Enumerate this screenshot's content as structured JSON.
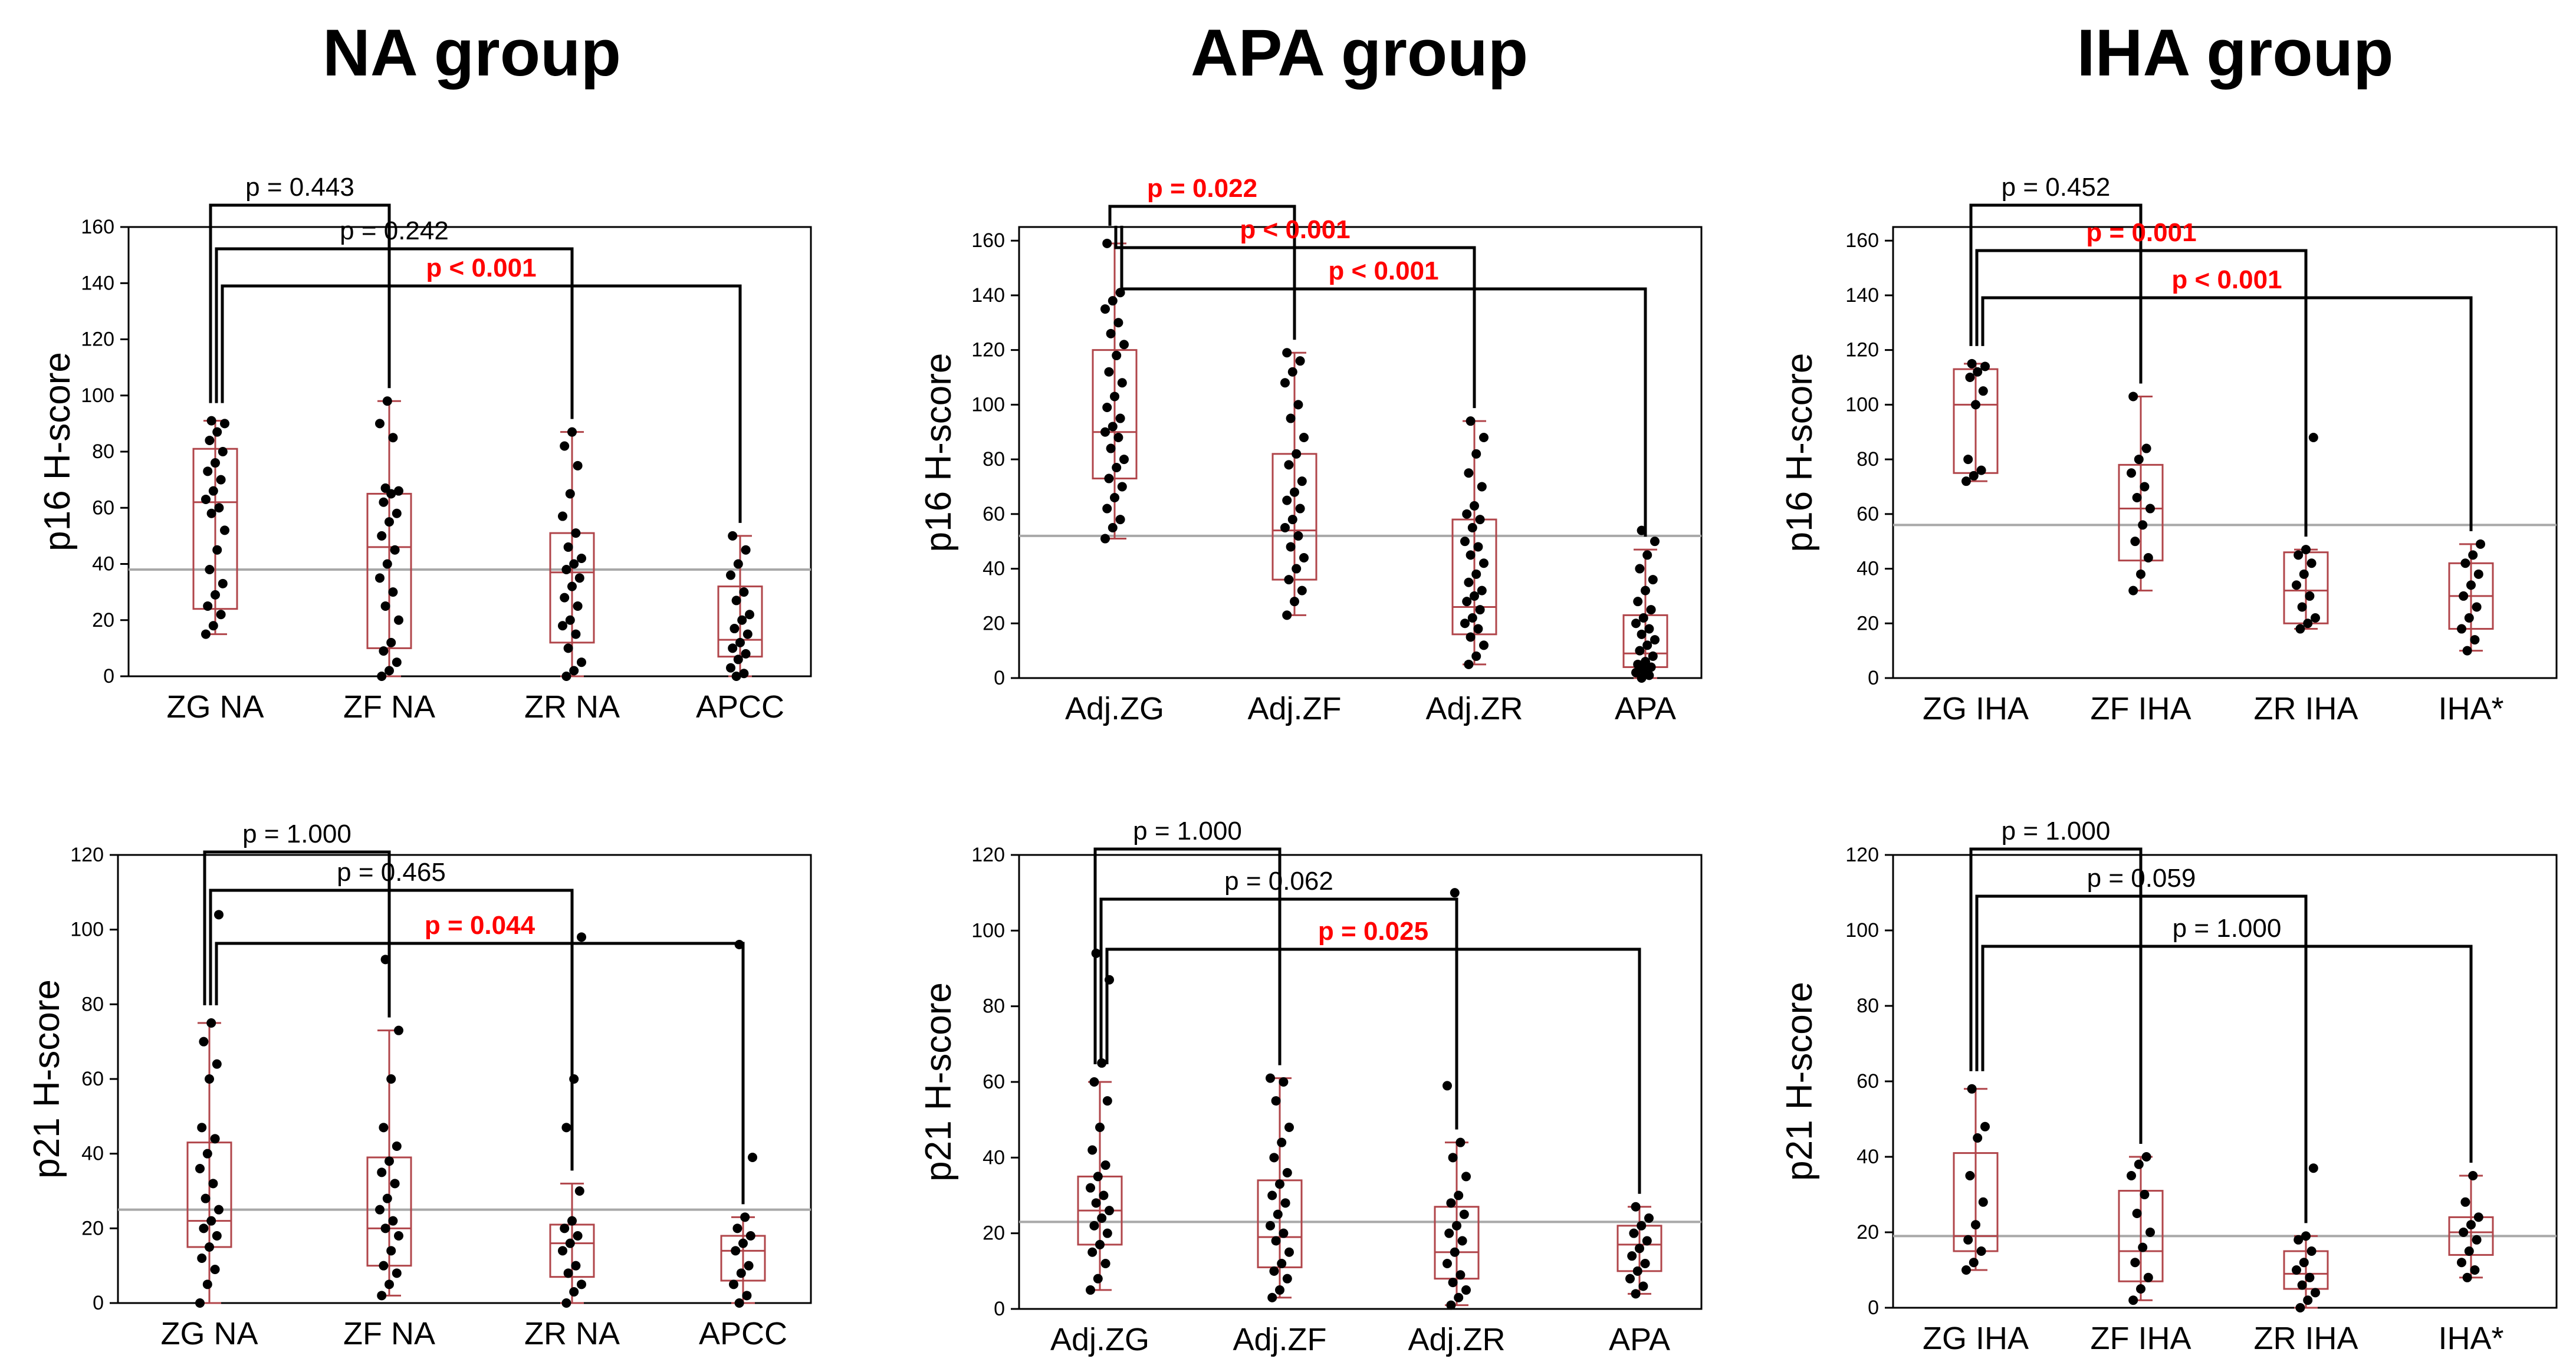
{
  "figure": {
    "group_titles": [
      "NA group",
      "APA group",
      "IHA group"
    ]
  },
  "colors": {
    "box": "#b0454a",
    "refline": "#a8a8a8",
    "significant": "#ff0000",
    "nonsignificant": "#000000",
    "point": "#000000"
  },
  "chart_data": [
    {
      "id": "na-p16",
      "type": "box",
      "ylabel": "p16 H-score",
      "ylim": [
        0,
        160
      ],
      "yticks": [
        0,
        20,
        40,
        60,
        80,
        100,
        120,
        140,
        160
      ],
      "refline": 38,
      "categories": [
        "ZG NA",
        "ZF NA",
        "ZR NA",
        "APCC"
      ],
      "boxes": [
        {
          "min": 15,
          "q1": 24,
          "median": 62,
          "q3": 81,
          "max": 91
        },
        {
          "min": 0,
          "q1": 10,
          "median": 46,
          "q3": 65,
          "max": 98
        },
        {
          "min": 0,
          "q1": 12,
          "median": 37,
          "q3": 51,
          "max": 87
        },
        {
          "min": 0,
          "q1": 7,
          "median": 13,
          "q3": 32,
          "max": 50
        }
      ],
      "points": [
        [
          15,
          18,
          22,
          25,
          29,
          33,
          38,
          45,
          52,
          58,
          60,
          63,
          66,
          70,
          73,
          76,
          80,
          84,
          87,
          90,
          91
        ],
        [
          0,
          2,
          5,
          9,
          12,
          20,
          25,
          30,
          35,
          40,
          45,
          50,
          55,
          58,
          62,
          65,
          66,
          67,
          85,
          90,
          98
        ],
        [
          0,
          2,
          5,
          10,
          15,
          18,
          20,
          25,
          28,
          32,
          35,
          38,
          40,
          42,
          46,
          51,
          57,
          65,
          75,
          82,
          87
        ],
        [
          0,
          1,
          3,
          6,
          8,
          10,
          12,
          15,
          17,
          20,
          22,
          27,
          30,
          36,
          40,
          45,
          50
        ]
      ],
      "comparisons": [
        {
          "text": "p = 0.443",
          "from": 0,
          "to": 1,
          "significant": false
        },
        {
          "text": "p = 0.242",
          "from": 0,
          "to": 2,
          "significant": false
        },
        {
          "text": "p < 0.001",
          "from": 0,
          "to": 3,
          "significant": true
        }
      ]
    },
    {
      "id": "apa-p16",
      "type": "box",
      "ylabel": "p16 H-score",
      "ylim": [
        0,
        165
      ],
      "yticks": [
        0,
        20,
        40,
        60,
        80,
        100,
        120,
        140,
        160
      ],
      "refline": 52,
      "categories": [
        "Adj.ZG",
        "Adj.ZF",
        "Adj.ZR",
        "APA"
      ],
      "boxes": [
        {
          "min": 51,
          "q1": 73,
          "median": 90,
          "q3": 120,
          "max": 159
        },
        {
          "min": 23,
          "q1": 36,
          "median": 54,
          "q3": 82,
          "max": 119
        },
        {
          "min": 5,
          "q1": 16,
          "median": 26,
          "q3": 58,
          "max": 94
        },
        {
          "min": 0,
          "q1": 4,
          "median": 9,
          "q3": 23,
          "max": 47
        }
      ],
      "points": [
        [
          51,
          55,
          58,
          62,
          66,
          70,
          73,
          77,
          80,
          84,
          88,
          90,
          92,
          95,
          99,
          103,
          108,
          112,
          118,
          122,
          126,
          130,
          135,
          138,
          141,
          159
        ],
        [
          23,
          28,
          32,
          36,
          40,
          44,
          48,
          52,
          55,
          58,
          62,
          65,
          68,
          72,
          78,
          82,
          88,
          95,
          100,
          108,
          112,
          116,
          119
        ],
        [
          5,
          8,
          12,
          15,
          18,
          20,
          22,
          25,
          28,
          30,
          32,
          35,
          38,
          42,
          45,
          48,
          50,
          55,
          58,
          60,
          63,
          70,
          75,
          82,
          88,
          94
        ],
        [
          0,
          1,
          2,
          3,
          4,
          5,
          6,
          8,
          10,
          12,
          14,
          16,
          18,
          20,
          22,
          25,
          28,
          32,
          36,
          40,
          45,
          50,
          54
        ]
      ],
      "comparisons": [
        {
          "text": "p = 0.022",
          "from": 0,
          "to": 1,
          "significant": true
        },
        {
          "text": "p < 0.001",
          "from": 0,
          "to": 2,
          "significant": true
        },
        {
          "text": "p < 0.001",
          "from": 0,
          "to": 3,
          "significant": true
        }
      ]
    },
    {
      "id": "iha-p16",
      "type": "box",
      "ylabel": "p16 H-score",
      "ylim": [
        0,
        165
      ],
      "yticks": [
        0,
        20,
        40,
        60,
        80,
        100,
        120,
        140,
        160
      ],
      "refline": 56,
      "categories": [
        "ZG IHA",
        "ZF IHA",
        "ZR IHA",
        "IHA*"
      ],
      "boxes": [
        {
          "min": 72,
          "q1": 75,
          "median": 100,
          "q3": 113,
          "max": 115
        },
        {
          "min": 32,
          "q1": 43,
          "median": 62,
          "q3": 78,
          "max": 103
        },
        {
          "min": 18,
          "q1": 20,
          "median": 32,
          "q3": 46,
          "max": 47
        },
        {
          "min": 10,
          "q1": 18,
          "median": 30,
          "q3": 42,
          "max": 49
        }
      ],
      "points": [
        [
          72,
          74,
          76,
          80,
          100,
          105,
          110,
          112,
          114,
          115
        ],
        [
          32,
          38,
          44,
          50,
          56,
          62,
          66,
          70,
          75,
          80,
          84,
          103
        ],
        [
          18,
          20,
          22,
          26,
          30,
          34,
          38,
          42,
          45,
          47,
          88
        ],
        [
          10,
          14,
          18,
          22,
          26,
          30,
          34,
          38,
          42,
          45,
          49
        ]
      ],
      "comparisons": [
        {
          "text": "p = 0.452",
          "from": 0,
          "to": 1,
          "significant": false
        },
        {
          "text": "p = 0.001",
          "from": 0,
          "to": 2,
          "significant": true
        },
        {
          "text": "p < 0.001",
          "from": 0,
          "to": 3,
          "significant": true
        }
      ]
    },
    {
      "id": "na-p21",
      "type": "box",
      "ylabel": "p21 H-score",
      "ylim": [
        0,
        120
      ],
      "yticks": [
        0,
        20,
        40,
        60,
        80,
        100,
        120
      ],
      "refline": 25,
      "categories": [
        "ZG NA",
        "ZF NA",
        "ZR NA",
        "APCC"
      ],
      "boxes": [
        {
          "min": 0,
          "q1": 15,
          "median": 22,
          "q3": 43,
          "max": 75
        },
        {
          "min": 2,
          "q1": 10,
          "median": 20,
          "q3": 39,
          "max": 73
        },
        {
          "min": 0,
          "q1": 7,
          "median": 16,
          "q3": 21,
          "max": 32
        },
        {
          "min": 0,
          "q1": 6,
          "median": 14,
          "q3": 18,
          "max": 23
        }
      ],
      "points": [
        [
          0,
          5,
          9,
          12,
          15,
          18,
          20,
          22,
          25,
          28,
          32,
          36,
          40,
          44,
          47,
          60,
          64,
          70,
          75,
          104
        ],
        [
          2,
          5,
          8,
          10,
          14,
          18,
          20,
          22,
          25,
          28,
          32,
          35,
          38,
          42,
          47,
          60,
          73,
          92
        ],
        [
          0,
          3,
          5,
          8,
          10,
          14,
          16,
          18,
          20,
          22,
          30,
          47,
          60,
          98
        ],
        [
          0,
          2,
          5,
          8,
          10,
          14,
          16,
          18,
          20,
          23,
          39,
          96
        ]
      ],
      "comparisons": [
        {
          "text": "p = 1.000",
          "from": 0,
          "to": 1,
          "significant": false
        },
        {
          "text": "p = 0.465",
          "from": 0,
          "to": 2,
          "significant": false
        },
        {
          "text": "p = 0.044",
          "from": 0,
          "to": 3,
          "significant": true
        }
      ]
    },
    {
      "id": "apa-p21",
      "type": "box",
      "ylabel": "p21 H-score",
      "ylim": [
        0,
        120
      ],
      "yticks": [
        0,
        20,
        40,
        60,
        80,
        100,
        120
      ],
      "refline": 23,
      "categories": [
        "Adj.ZG",
        "Adj.ZF",
        "Adj.ZR",
        "APA"
      ],
      "boxes": [
        {
          "min": 5,
          "q1": 17,
          "median": 26,
          "q3": 35,
          "max": 60
        },
        {
          "min": 3,
          "q1": 11,
          "median": 19,
          "q3": 34,
          "max": 61
        },
        {
          "min": 1,
          "q1": 8,
          "median": 15,
          "q3": 27,
          "max": 44
        },
        {
          "min": 4,
          "q1": 10,
          "median": 17,
          "q3": 22,
          "max": 27
        }
      ],
      "points": [
        [
          5,
          8,
          12,
          15,
          17,
          20,
          22,
          24,
          26,
          28,
          30,
          32,
          35,
          38,
          42,
          48,
          55,
          60,
          65,
          87,
          94
        ],
        [
          3,
          5,
          8,
          10,
          12,
          15,
          18,
          20,
          22,
          25,
          28,
          30,
          33,
          36,
          40,
          44,
          48,
          55,
          60,
          61
        ],
        [
          1,
          3,
          5,
          7,
          9,
          12,
          15,
          18,
          20,
          22,
          25,
          28,
          30,
          35,
          40,
          44,
          59,
          110
        ],
        [
          4,
          6,
          8,
          10,
          12,
          14,
          16,
          18,
          20,
          22,
          24,
          27
        ]
      ],
      "comparisons": [
        {
          "text": "p = 1.000",
          "from": 0,
          "to": 1,
          "significant": false
        },
        {
          "text": "p = 0.062",
          "from": 0,
          "to": 2,
          "significant": false
        },
        {
          "text": "p = 0.025",
          "from": 0,
          "to": 3,
          "significant": true
        }
      ]
    },
    {
      "id": "iha-p21",
      "type": "box",
      "ylabel": "p21 H-score",
      "ylim": [
        0,
        120
      ],
      "yticks": [
        0,
        20,
        40,
        60,
        80,
        100,
        120
      ],
      "refline": 19,
      "categories": [
        "ZG IHA",
        "ZF IHA",
        "ZR IHA",
        "IHA*"
      ],
      "boxes": [
        {
          "min": 10,
          "q1": 15,
          "median": 19,
          "q3": 41,
          "max": 58
        },
        {
          "min": 2,
          "q1": 7,
          "median": 15,
          "q3": 31,
          "max": 40
        },
        {
          "min": 0,
          "q1": 5,
          "median": 9,
          "q3": 15,
          "max": 19
        },
        {
          "min": 8,
          "q1": 14,
          "median": 20,
          "q3": 24,
          "max": 35
        }
      ],
      "points": [
        [
          10,
          12,
          15,
          18,
          22,
          28,
          35,
          45,
          48,
          58
        ],
        [
          2,
          5,
          8,
          12,
          16,
          20,
          25,
          30,
          35,
          38,
          40
        ],
        [
          0,
          2,
          4,
          6,
          8,
          10,
          12,
          15,
          18,
          19,
          37
        ],
        [
          8,
          10,
          12,
          15,
          18,
          20,
          22,
          24,
          28,
          35
        ]
      ],
      "comparisons": [
        {
          "text": "p = 1.000",
          "from": 0,
          "to": 1,
          "significant": false
        },
        {
          "text": "p = 0.059",
          "from": 0,
          "to": 2,
          "significant": false
        },
        {
          "text": "p = 1.000",
          "from": 0,
          "to": 3,
          "significant": false
        }
      ]
    }
  ]
}
